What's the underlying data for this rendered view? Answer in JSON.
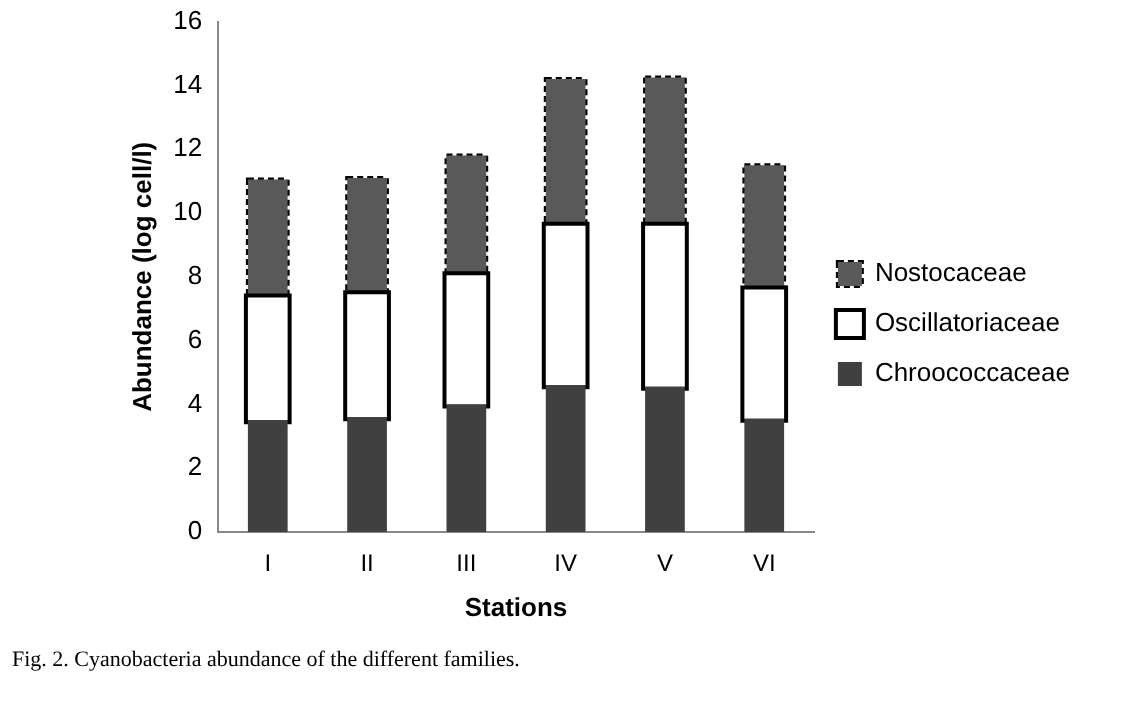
{
  "chart_data": {
    "type": "bar",
    "stacked": true,
    "xlabel": "Stations",
    "ylabel": "Abundance (log cell/l)",
    "categories": [
      "I",
      "II",
      "III",
      "IV",
      "V",
      "VI"
    ],
    "series": [
      {
        "name": "Chroococcaceae",
        "color": "#404040",
        "values": [
          3.5,
          3.6,
          4.0,
          4.6,
          4.55,
          3.55
        ]
      },
      {
        "name": "Oscillatoriaceae",
        "color": "#ffffff",
        "line_style": "solid",
        "values": [
          3.85,
          3.85,
          4.05,
          5.0,
          5.05,
          4.05
        ]
      },
      {
        "name": "Nostocaceae",
        "color": "#595959",
        "line_style": "dashed",
        "values": [
          3.7,
          3.65,
          3.75,
          4.6,
          4.65,
          3.9
        ]
      }
    ],
    "ylim": [
      0,
      16
    ],
    "yticks": [
      0,
      2,
      4,
      6,
      8,
      10,
      12,
      14,
      16
    ],
    "grid": false,
    "legend": "right",
    "annotations": [
      "Fig. 2. Cyanobacteria abundance of the different families."
    ]
  }
}
